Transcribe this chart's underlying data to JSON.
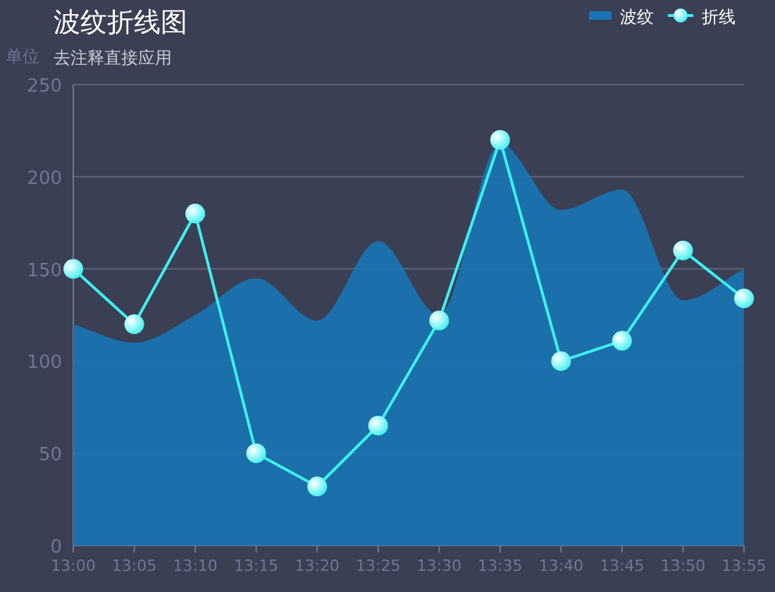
{
  "chart_data": {
    "type": "line",
    "title": "波纹折线图",
    "subtitle": "去注释直接应用",
    "ylabel": "单位",
    "categories": [
      "13:00",
      "13:05",
      "13:10",
      "13:15",
      "13:20",
      "13:25",
      "13:30",
      "13:35",
      "13:40",
      "13:45",
      "13:50",
      "13:55"
    ],
    "series": [
      {
        "name": "波纹",
        "type": "area",
        "color": "#1874b4",
        "values": [
          120,
          110,
          125,
          145,
          122,
          165,
          125,
          218,
          182,
          193,
          133,
          150
        ]
      },
      {
        "name": "折线",
        "color": "#3ef0f0",
        "marker": "circle",
        "values": [
          150,
          120,
          180,
          50,
          32,
          65,
          122,
          220,
          100,
          111,
          160,
          134
        ]
      }
    ],
    "ylim": [
      0,
      250
    ],
    "yticks": [
      0,
      50,
      100,
      150,
      200,
      250
    ],
    "grid": "y",
    "legend": "top right"
  }
}
